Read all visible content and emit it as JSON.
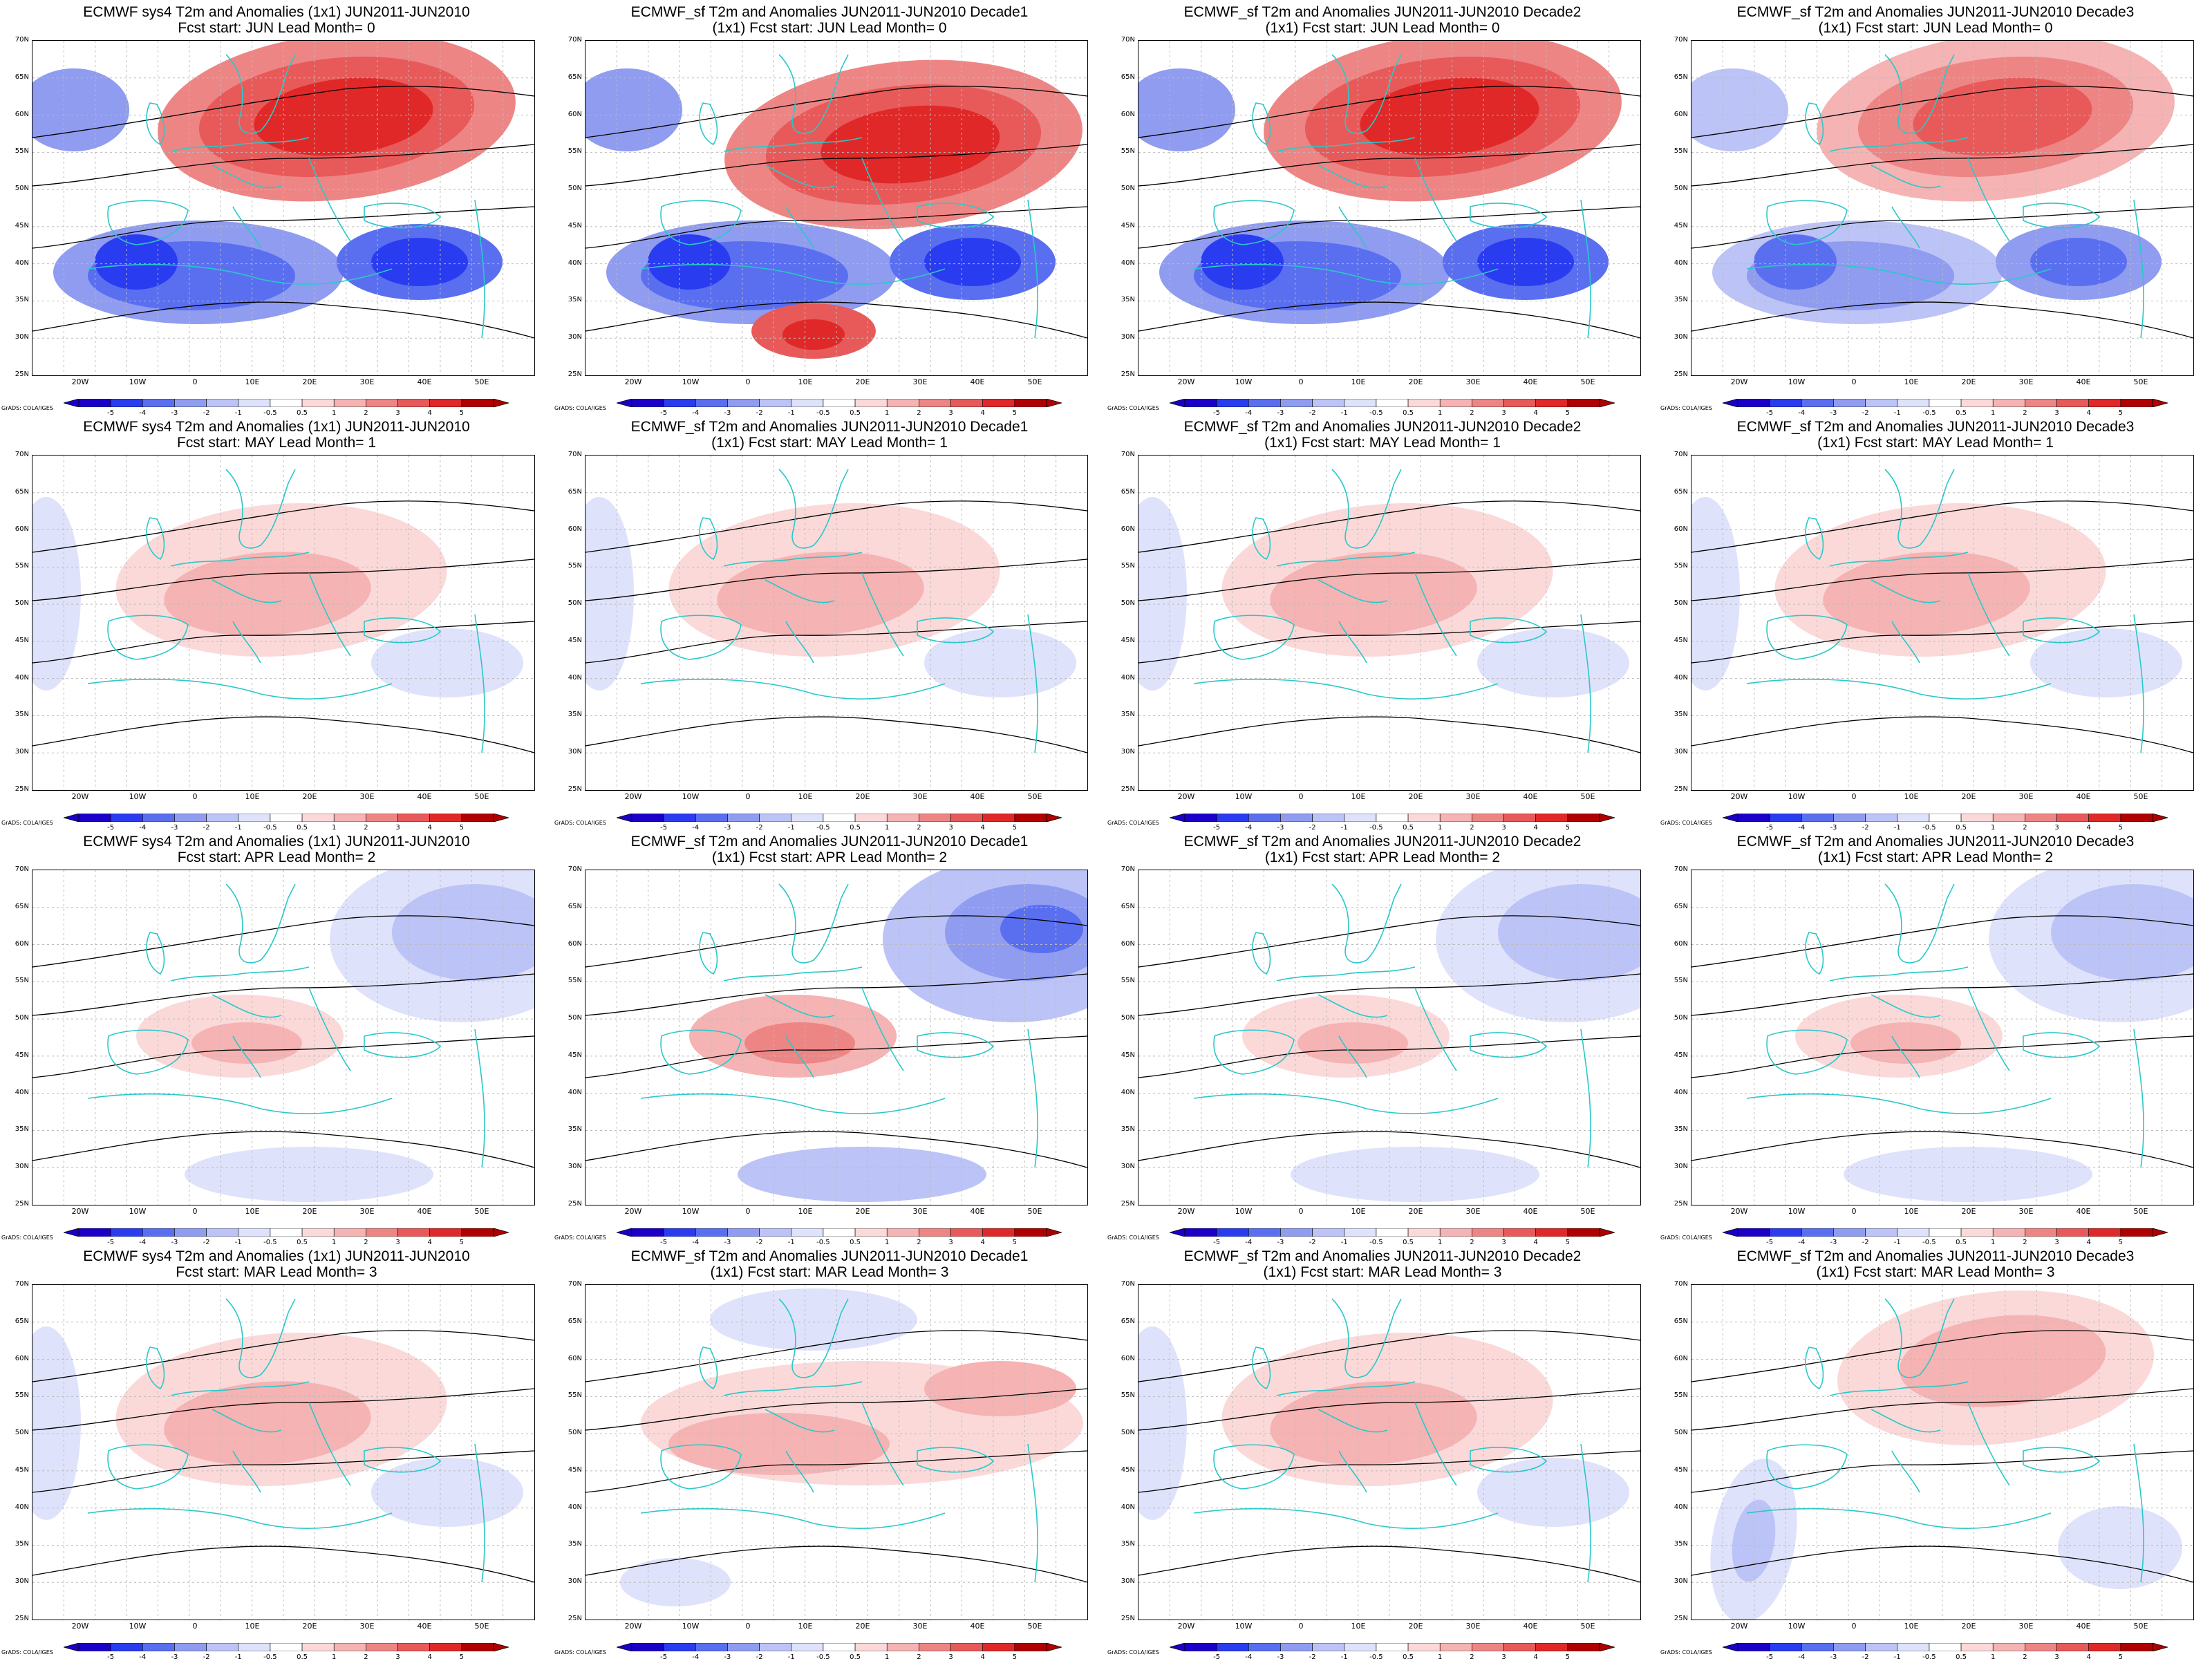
{
  "colors": {
    "anom_scale": [
      "#1a00c8",
      "#2a3cf0",
      "#5a6ff0",
      "#8f9cf0",
      "#bcc3f6",
      "#dfe2fb",
      "#ffffff",
      "#fbd9d9",
      "#f5b3b3",
      "#ee8585",
      "#e85a5a",
      "#e02828",
      "#b00000"
    ],
    "coastline": "#2ac8c8",
    "contour": "#000000"
  },
  "colorbar": {
    "ticks": [
      "-5",
      "-4",
      "-3",
      "-2",
      "-1",
      "-0.5",
      "0.5",
      "1",
      "2",
      "3",
      "4",
      "5"
    ],
    "credit": "GrADS: COLA/IGES"
  },
  "axes": {
    "lat_labels": [
      "70N",
      "65N",
      "60N",
      "55N",
      "50N",
      "45N",
      "40N",
      "35N",
      "30N",
      "25N"
    ],
    "lon_labels": [
      "20W",
      "10W",
      "0",
      "10E",
      "20E",
      "30E",
      "40E",
      "50E"
    ]
  },
  "panels": [
    {
      "title1": "ECMWF sys4 T2m and Anomalies (1x1) JUN2011-JUN2010",
      "title2": "Fcst start: JUN  Lead Month= 0",
      "anomaly": "strong",
      "pattern": "warm-north-cold-south"
    },
    {
      "title1": "ECMWF_sf T2m and Anomalies JUN2011-JUN2010 Decade1",
      "title2": "(1x1) Fcst start: JUN  Lead Month= 0",
      "anomaly": "strong",
      "pattern": "warm-central-cold-iberia"
    },
    {
      "title1": "ECMWF_sf T2m and Anomalies JUN2011-JUN2010 Decade2",
      "title2": "(1x1) Fcst start: JUN  Lead Month= 0",
      "anomaly": "strong",
      "pattern": "warm-north-cold-south"
    },
    {
      "title1": "ECMWF_sf T2m and Anomalies JUN2011-JUN2010 Decade3",
      "title2": "(1x1) Fcst start: JUN  Lead Month= 0",
      "anomaly": "medium",
      "pattern": "warm-north-cold-south"
    },
    {
      "title1": "ECMWF sys4 T2m and Anomalies (1x1) JUN2011-JUN2010",
      "title2": "Fcst start: MAY  Lead Month= 1",
      "anomaly": "weak",
      "pattern": "warm-central"
    },
    {
      "title1": "ECMWF_sf T2m and Anomalies JUN2011-JUN2010 Decade1",
      "title2": "(1x1) Fcst start: MAY  Lead Month= 1",
      "anomaly": "weak",
      "pattern": "warm-central"
    },
    {
      "title1": "ECMWF_sf T2m and Anomalies JUN2011-JUN2010 Decade2",
      "title2": "(1x1) Fcst start: MAY  Lead Month= 1",
      "anomaly": "weak",
      "pattern": "warm-central"
    },
    {
      "title1": "ECMWF_sf T2m and Anomalies JUN2011-JUN2010 Decade3",
      "title2": "(1x1) Fcst start: MAY  Lead Month= 1",
      "anomaly": "weak",
      "pattern": "warm-central"
    },
    {
      "title1": "ECMWF sys4 T2m and Anomalies (1x1) JUN2011-JUN2010",
      "title2": "Fcst start: APR  Lead Month= 2",
      "anomaly": "weak",
      "pattern": "cold-northeast"
    },
    {
      "title1": "ECMWF_sf T2m and Anomalies JUN2011-JUN2010 Decade1",
      "title2": "(1x1) Fcst start: APR  Lead Month= 2",
      "anomaly": "medium",
      "pattern": "cold-northeast"
    },
    {
      "title1": "ECMWF_sf T2m and Anomalies JUN2011-JUN2010 Decade2",
      "title2": "(1x1) Fcst start: APR  Lead Month= 2",
      "anomaly": "weak",
      "pattern": "cold-northeast"
    },
    {
      "title1": "ECMWF_sf T2m and Anomalies JUN2011-JUN2010 Decade3",
      "title2": "(1x1) Fcst start: APR  Lead Month= 2",
      "anomaly": "weak",
      "pattern": "cold-northeast"
    },
    {
      "title1": "ECMWF sys4 T2m and Anomalies (1x1) JUN2011-JUN2010",
      "title2": "Fcst start: MAR  Lead Month= 3",
      "anomaly": "weak",
      "pattern": "warm-central"
    },
    {
      "title1": "ECMWF_sf T2m and Anomalies JUN2011-JUN2010 Decade1",
      "title2": "(1x1) Fcst start: MAR  Lead Month= 3",
      "anomaly": "weak",
      "pattern": "warm-belt"
    },
    {
      "title1": "ECMWF_sf T2m and Anomalies JUN2011-JUN2010 Decade2",
      "title2": "(1x1) Fcst start: MAR  Lead Month= 3",
      "anomaly": "weak",
      "pattern": "warm-central"
    },
    {
      "title1": "ECMWF_sf T2m and Anomalies JUN2011-JUN2010 Decade3",
      "title2": "(1x1) Fcst start: MAR  Lead Month= 3",
      "anomaly": "weak",
      "pattern": "warm-north-cold-southwest"
    }
  ]
}
